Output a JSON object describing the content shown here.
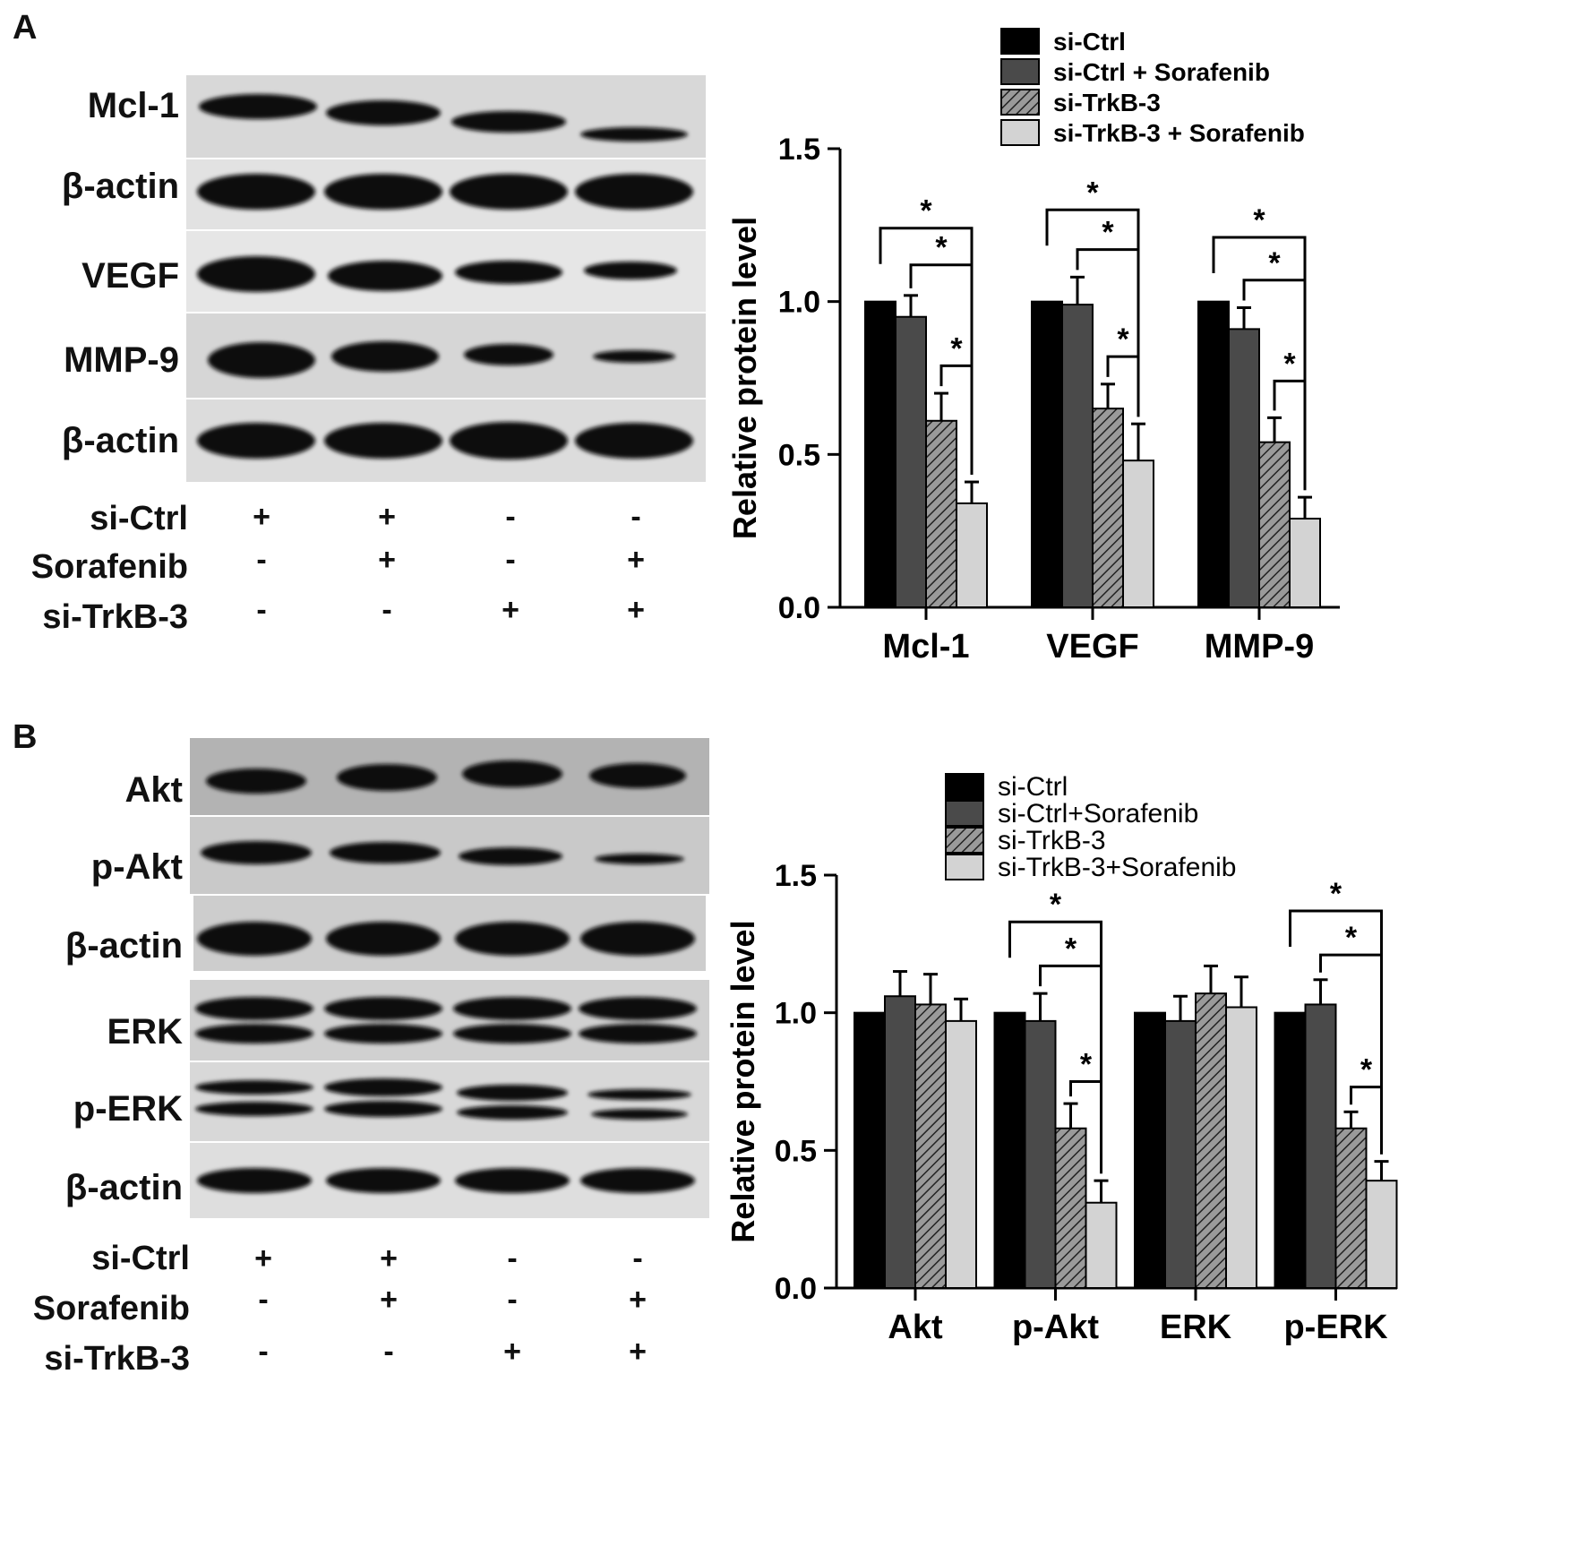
{
  "panel_a": {
    "letter": "A",
    "blots": [
      "Mcl-1",
      "β-actin",
      "VEGF",
      "MMP-9",
      "β-actin"
    ],
    "conditions": [
      {
        "label": "si-Ctrl",
        "signs": [
          "+",
          "+",
          "-",
          "-"
        ]
      },
      {
        "label": "Sorafenib",
        "signs": [
          "-",
          "+",
          "-",
          "+"
        ]
      },
      {
        "label": "si-TrkB-3",
        "signs": [
          "-",
          "-",
          "+",
          "+"
        ]
      }
    ]
  },
  "panel_b": {
    "letter": "B",
    "blots": [
      "Akt",
      "p-Akt",
      "β-actin",
      "ERK",
      "p-ERK",
      "β-actin"
    ],
    "conditions": [
      {
        "label": "si-Ctrl",
        "signs": [
          "+",
          "+",
          "-",
          "-"
        ]
      },
      {
        "label": "Sorafenib",
        "signs": [
          "-",
          "+",
          "-",
          "+"
        ]
      },
      {
        "label": "si-TrkB-3",
        "signs": [
          "-",
          "-",
          "+",
          "+"
        ]
      }
    ]
  },
  "colors": {
    "si_ctrl": "#000000",
    "si_ctrl_sorafenib": "#4a4a4a",
    "si_trkb3": "#8c8c8c",
    "si_trkb3_sorafenib": "#d3d3d3"
  },
  "chart_data": [
    {
      "type": "bar",
      "ylabel": "Relative protein level",
      "ylim": [
        0,
        1.5
      ],
      "yticks": [
        "0.0",
        "0.5",
        "1.0",
        "1.5"
      ],
      "legend_position": "top-right",
      "categories": [
        "Mcl-1",
        "VEGF",
        "MMP-9"
      ],
      "series": [
        {
          "name": "si-Ctrl",
          "values": [
            1.0,
            1.0,
            1.0
          ],
          "errors": [
            0,
            0,
            0
          ]
        },
        {
          "name": "si-Ctrl + Sorafenib",
          "values": [
            0.95,
            0.99,
            0.91
          ],
          "errors": [
            0.07,
            0.09,
            0.07
          ]
        },
        {
          "name": "si-TrkB-3",
          "values": [
            0.61,
            0.65,
            0.54
          ],
          "errors": [
            0.09,
            0.08,
            0.08
          ]
        },
        {
          "name": "si-TrkB-3 + Sorafenib",
          "values": [
            0.34,
            0.48,
            0.29
          ],
          "errors": [
            0.07,
            0.12,
            0.07
          ]
        }
      ],
      "significance": [
        {
          "group": 0,
          "from": 0,
          "to": 3,
          "level": 1.24,
          "label": "*"
        },
        {
          "group": 0,
          "from": 1,
          "to": 3,
          "level": 1.12,
          "label": "*"
        },
        {
          "group": 0,
          "from": 2,
          "to": 3,
          "level": 0.79,
          "label": "*"
        },
        {
          "group": 1,
          "from": 0,
          "to": 3,
          "level": 1.3,
          "label": "*"
        },
        {
          "group": 1,
          "from": 1,
          "to": 3,
          "level": 1.17,
          "label": "*"
        },
        {
          "group": 1,
          "from": 2,
          "to": 3,
          "level": 0.82,
          "label": "*"
        },
        {
          "group": 2,
          "from": 0,
          "to": 3,
          "level": 1.21,
          "label": "*"
        },
        {
          "group": 2,
          "from": 1,
          "to": 3,
          "level": 1.07,
          "label": "*"
        },
        {
          "group": 2,
          "from": 2,
          "to": 3,
          "level": 0.74,
          "label": "*"
        }
      ]
    },
    {
      "type": "bar",
      "ylabel": "Relative protein level",
      "ylim": [
        0,
        1.5
      ],
      "yticks": [
        "0.0",
        "0.5",
        "1.0",
        "1.5"
      ],
      "legend_position": "top-right",
      "categories": [
        "Akt",
        "p-Akt",
        "ERK",
        "p-ERK"
      ],
      "series": [
        {
          "name": "si-Ctrl",
          "values": [
            1.0,
            1.0,
            1.0,
            1.0
          ],
          "errors": [
            0,
            0,
            0,
            0
          ]
        },
        {
          "name": "si-Ctrl+Sorafenib",
          "values": [
            1.06,
            0.97,
            0.97,
            1.03
          ],
          "errors": [
            0.09,
            0.1,
            0.09,
            0.09
          ]
        },
        {
          "name": "si-TrkB-3",
          "values": [
            1.03,
            0.58,
            1.07,
            0.58
          ],
          "errors": [
            0.11,
            0.09,
            0.1,
            0.06
          ]
        },
        {
          "name": "si-TrkB-3+Sorafenib",
          "values": [
            0.97,
            0.31,
            1.02,
            0.39
          ],
          "errors": [
            0.08,
            0.08,
            0.11,
            0.07
          ]
        }
      ],
      "significance": [
        {
          "group": 1,
          "from": 0,
          "to": 3,
          "level": 1.33,
          "label": "*"
        },
        {
          "group": 1,
          "from": 1,
          "to": 3,
          "level": 1.17,
          "label": "*"
        },
        {
          "group": 1,
          "from": 2,
          "to": 3,
          "level": 0.75,
          "label": "*"
        },
        {
          "group": 3,
          "from": 0,
          "to": 3,
          "level": 1.37,
          "label": "*"
        },
        {
          "group": 3,
          "from": 1,
          "to": 3,
          "level": 1.21,
          "label": "*"
        },
        {
          "group": 3,
          "from": 2,
          "to": 3,
          "level": 0.73,
          "label": "*"
        }
      ]
    }
  ]
}
